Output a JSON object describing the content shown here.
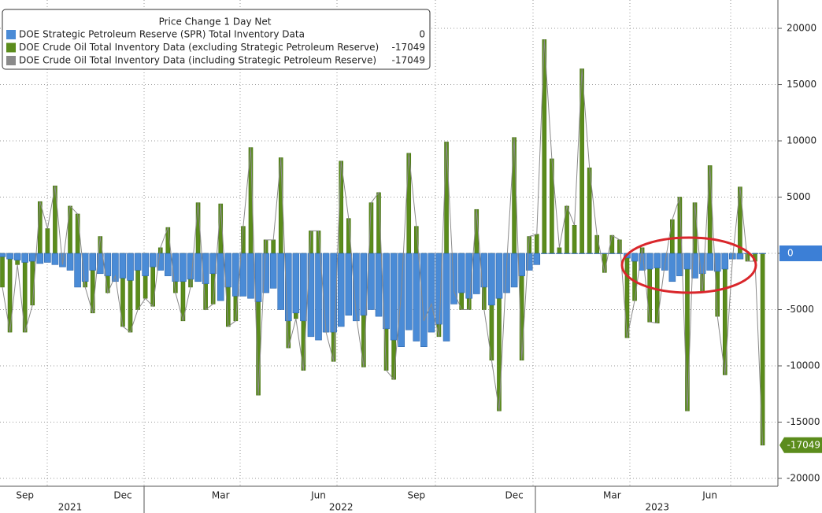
{
  "chart_data": {
    "type": "bar",
    "title": "Price Change 1 Day Net",
    "categories": [
      null,
      null,
      null,
      "Sep",
      null,
      null,
      null,
      null,
      null,
      null,
      null,
      null,
      null,
      null,
      null,
      null,
      "Dec",
      null,
      null,
      null,
      null,
      null,
      null,
      null,
      null,
      null,
      null,
      null,
      null,
      "Mar",
      null,
      null,
      null,
      null,
      null,
      null,
      null,
      null,
      null,
      null,
      null,
      null,
      "Jun",
      null,
      null,
      null,
      null,
      null,
      null,
      null,
      null,
      null,
      null,
      null,
      null,
      "Sep",
      null,
      null,
      null,
      null,
      null,
      null,
      null,
      null,
      null,
      null,
      null,
      null,
      "Dec",
      null,
      null,
      null,
      null,
      null,
      null,
      null,
      null,
      null,
      null,
      null,
      null,
      "Mar",
      null,
      null,
      null,
      null,
      null,
      null,
      null,
      null,
      null,
      null,
      null,
      null,
      "Jun",
      null,
      null,
      null,
      null,
      null,
      null,
      null
    ],
    "years": [
      "2021",
      "2022",
      "2023"
    ],
    "ylim": [
      -20700,
      22520
    ],
    "yticks": [
      20000,
      15000,
      10000,
      5000,
      0,
      -5000,
      -10000,
      -15000,
      -20000
    ],
    "grid": true,
    "series": [
      {
        "name": "DOE Strategic Petroleum Reserve (SPR) Total Inventory Data",
        "color": "#4a8bd6",
        "type": "bar",
        "legend_value": 0,
        "values": [
          -300,
          -500,
          -600,
          -800,
          -700,
          -900,
          -800,
          -1000,
          -1200,
          -1500,
          -3000,
          -2500,
          -1500,
          -1800,
          -2000,
          -2500,
          -2200,
          -2400,
          -1500,
          -2000,
          -1200,
          -1500,
          -2000,
          -2500,
          -2500,
          -2300,
          -2500,
          -2700,
          -1800,
          -4200,
          -3000,
          -3800,
          -3800,
          -4000,
          -4300,
          -3500,
          -3100,
          -5000,
          -6000,
          -5300,
          -6000,
          -7400,
          -7700,
          -7000,
          -7000,
          -6500,
          -5500,
          -6000,
          -5500,
          -5000,
          -5600,
          -6700,
          -7700,
          -8300,
          -6800,
          -7800,
          -8300,
          -7000,
          -6300,
          -7800,
          -4500,
          -3500,
          -4000,
          -3600,
          -3000,
          -4600,
          -4000,
          -3500,
          -3000,
          -2000,
          -1500,
          -1000,
          0,
          0,
          0,
          0,
          0,
          0,
          0,
          0,
          0,
          0,
          0,
          -400,
          -700,
          -1500,
          -1400,
          -1300,
          -1500,
          -2500,
          -2000,
          -1400,
          -2200,
          -1800,
          -1500,
          -1600,
          -1400,
          -500,
          -500,
          0,
          0,
          0
        ]
      },
      {
        "name": "DOE Crude Oil Total Inventory Data (excluding Strategic Petroleum Reserve)",
        "color": "#5b8c1c",
        "type": "bar",
        "legend_value": -17049,
        "values": [
          -3000,
          -7000,
          -1000,
          -7000,
          -4600,
          4600,
          2200,
          6000,
          -1000,
          4200,
          3500,
          -3000,
          -5300,
          1500,
          -3500,
          -2000,
          -6500,
          -7000,
          -5000,
          -4000,
          -4700,
          500,
          2300,
          -3500,
          -6000,
          -3000,
          4500,
          -5000,
          -4500,
          4400,
          -6500,
          -6000,
          2400,
          9400,
          -12600,
          1200,
          1200,
          8500,
          -8400,
          -5800,
          -10400,
          2000,
          2000,
          -7000,
          -9600,
          8200,
          3100,
          -5500,
          -10100,
          4500,
          5400,
          -10400,
          -11200,
          -3500,
          8900,
          2400,
          -6000,
          -4500,
          -7400,
          9900,
          -3400,
          -5000,
          -5000,
          3900,
          -5000,
          -9500,
          -14000,
          -1000,
          10300,
          -9500,
          1500,
          1700,
          19000,
          8400,
          500,
          4200,
          2500,
          16400,
          7600,
          1600,
          -1700,
          1600,
          1200,
          -7500,
          -4200,
          500,
          -6100,
          -6200,
          -1000,
          3000,
          5000,
          -14000,
          4500,
          -3500,
          7800,
          -5600,
          -10800,
          -500,
          5900,
          -700,
          -700,
          -17049
        ]
      },
      {
        "name": "DOE Crude Oil Total Inventory Data (including Strategic Petroleum Reserve)",
        "color": "#8a8a8a",
        "type": "line",
        "legend_value": -17049,
        "values": [
          -3000,
          -7000,
          -1000,
          -7000,
          -4600,
          4600,
          2200,
          6000,
          -1000,
          4200,
          3500,
          -3000,
          -5300,
          1500,
          -3500,
          -2000,
          -6500,
          -7000,
          -5000,
          -4000,
          -4700,
          500,
          2300,
          -3500,
          -6000,
          -3000,
          4500,
          -5000,
          -4500,
          4400,
          -6500,
          -6000,
          2400,
          9400,
          -12600,
          1200,
          1200,
          8500,
          -8400,
          -5800,
          -10400,
          2000,
          2000,
          -7000,
          -9600,
          8200,
          3100,
          -5500,
          -10100,
          4500,
          5400,
          -10400,
          -11200,
          -3500,
          8900,
          2400,
          -6000,
          -4500,
          -7400,
          9900,
          -3400,
          -5000,
          -5000,
          3900,
          -5000,
          -9500,
          -14000,
          -1000,
          10300,
          -9500,
          1500,
          1700,
          19000,
          8400,
          500,
          4200,
          2500,
          16400,
          7600,
          1600,
          -1700,
          1600,
          1200,
          -7500,
          -4200,
          500,
          -6100,
          -6200,
          -1000,
          3000,
          5000,
          -14000,
          4500,
          -3500,
          7800,
          -5600,
          -10800,
          -500,
          5900,
          -700,
          -700,
          -17049
        ]
      }
    ]
  }
}
